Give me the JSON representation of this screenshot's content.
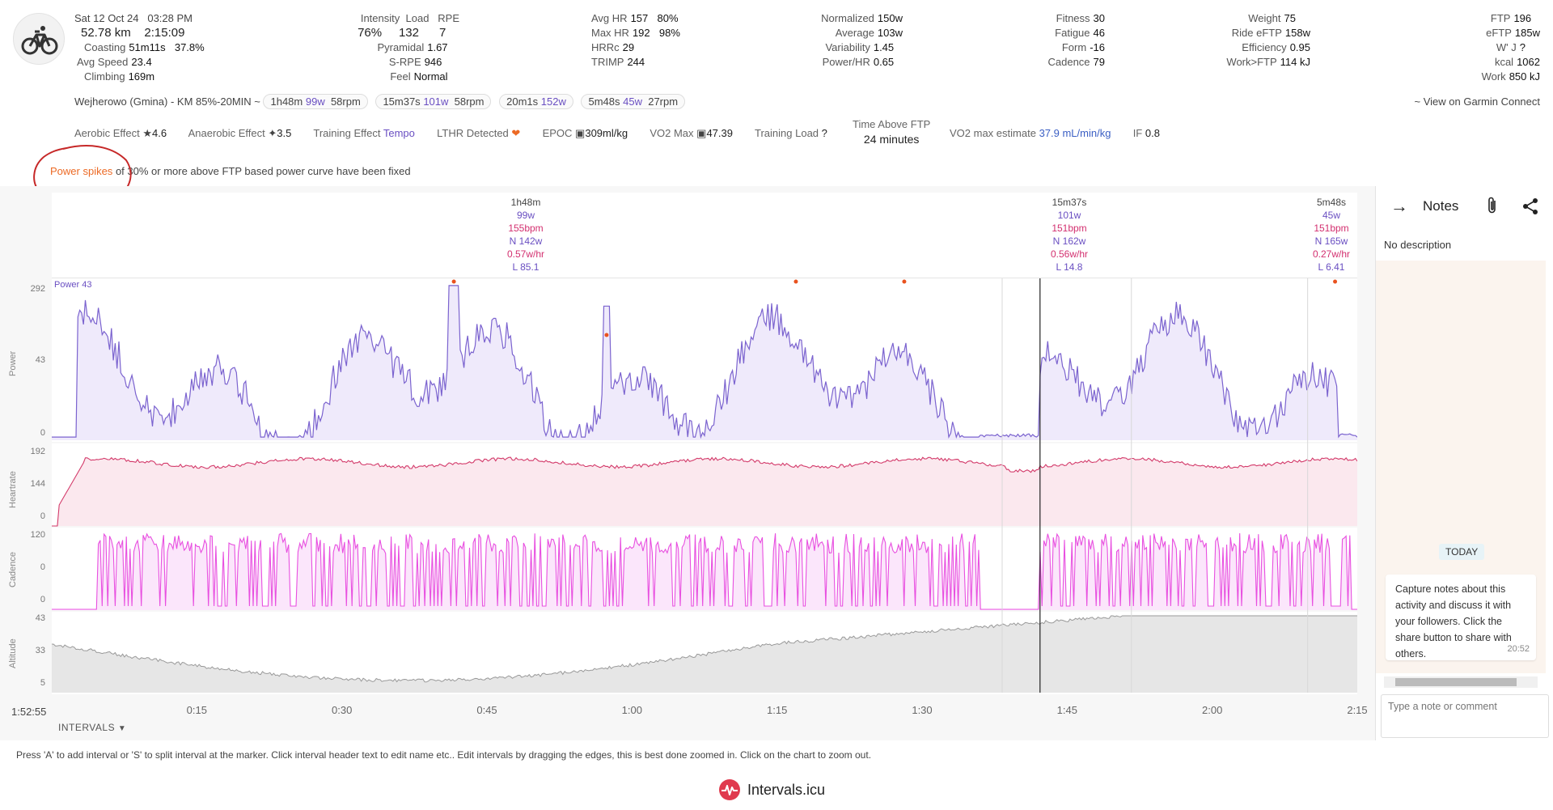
{
  "activity": {
    "date": "Sat 12 Oct 24",
    "time": "03:28 PM",
    "distance": "52.78 km",
    "duration": "2:15:09",
    "coasting_label": "Coasting",
    "coasting": "51m11s",
    "coasting_pct": "37.8%",
    "avg_speed_label": "Avg Speed",
    "avg_speed": "23.4",
    "climbing_label": "Climbing",
    "climbing": "169m"
  },
  "col2": {
    "intensity_label": "Intensity",
    "load_label": "Load",
    "rpe_label": "RPE",
    "intensity": "76%",
    "load": "132",
    "rpe": "7",
    "pyramidal_label": "Pyramidal",
    "pyramidal": "1.67",
    "srpe_label": "S-RPE",
    "srpe": "946",
    "feel_label": "Feel",
    "feel": "Normal"
  },
  "col3": {
    "avg_hr_label": "Avg HR",
    "avg_hr": "157",
    "avg_hr_pct": "80%",
    "max_hr_label": "Max HR",
    "max_hr": "192",
    "max_hr_pct": "98%",
    "hrrc_label": "HRRc",
    "hrrc": "29",
    "trimp_label": "TRIMP",
    "trimp": "244"
  },
  "col4": {
    "normalized_label": "Normalized",
    "normalized": "150w",
    "average_label": "Average",
    "average": "103w",
    "variability_label": "Variability",
    "variability": "1.45",
    "powerhr_label": "Power/HR",
    "powerhr": "0.65"
  },
  "col5": {
    "fitness_label": "Fitness",
    "fitness": "30",
    "fatigue_label": "Fatigue",
    "fatigue": "46",
    "form_label": "Form",
    "form": "-16",
    "cadence_label": "Cadence",
    "cadence": "79"
  },
  "col6": {
    "weight_label": "Weight",
    "weight": "75",
    "ride_eftp_label": "Ride eFTP",
    "ride_eftp": "158w",
    "efficiency_label": "Efficiency",
    "efficiency": "0.95",
    "workftp_label": "Work>FTP",
    "workftp": "114 kJ"
  },
  "col7": {
    "ftp_label": "FTP",
    "ftp": "196",
    "eftp_label": "eFTP",
    "eftp": "185w",
    "wj_label": "W' J",
    "wj": "?",
    "kcal_label": "kcal",
    "kcal": "1062",
    "work_label": "Work",
    "work": "850 kJ"
  },
  "route": {
    "name": "Wejherowo (Gmina) - KM 85%-20MIN ~",
    "chips": [
      {
        "dur": "1h48m",
        "pw": "99w",
        "cad": "58rpm"
      },
      {
        "dur": "15m37s",
        "pw": "101w",
        "cad": "58rpm"
      },
      {
        "dur": "20m1s",
        "pw": "152w",
        "cad": ""
      },
      {
        "dur": "5m48s",
        "pw": "45w",
        "cad": "27rpm"
      }
    ],
    "garmin_link": "~ View on Garmin Connect"
  },
  "effects": {
    "aerobic_label": "Aerobic Effect",
    "aerobic": "4.6",
    "anaerobic_label": "Anaerobic Effect",
    "anaerobic": "3.5",
    "training_effect_label": "Training Effect",
    "training_effect": "Tempo",
    "lthr_label": "LTHR Detected",
    "epoc_label": "EPOC",
    "epoc": "309ml/kg",
    "vo2_label": "VO2 Max",
    "vo2": "47.39",
    "training_load_label": "Training Load",
    "training_load": "?",
    "time_above_ftp_label": "Time Above FTP",
    "time_above_ftp": "24 minutes",
    "vo2_estimate_label": "VO2 max estimate",
    "vo2_estimate": "37.9 mL/min/kg",
    "if_label": "IF",
    "if_value": "0.8"
  },
  "notice": {
    "highlight": "Power spikes",
    "rest": "of 30% or more above FTP based power curve have been fixed"
  },
  "intervals": [
    {
      "dur": "1h48m",
      "pw": "99w",
      "hr": "155bpm",
      "np": "N 142w",
      "whr": "0.57w/hr",
      "l": "L 85.1"
    },
    {
      "dur": "15m37s",
      "pw": "101w",
      "hr": "151bpm",
      "np": "N 162w",
      "whr": "0.56w/hr",
      "l": "L 14.8"
    },
    {
      "dur": "5m48s",
      "pw": "45w",
      "hr": "151bpm",
      "np": "N 165w",
      "whr": "0.27w/hr",
      "l": "L 6.41"
    }
  ],
  "charts": {
    "power_label": "Power",
    "power_legend": "Power 43",
    "power_ticks": [
      "292",
      "43",
      "0"
    ],
    "hr_label": "Heartrate",
    "hr_ticks": [
      "192",
      "144",
      "0"
    ],
    "cad_label": "Cadence",
    "cad_ticks": [
      "120",
      "0",
      "0"
    ],
    "alt_label": "Altitude",
    "alt_ticks": [
      "43",
      "33",
      "5"
    ],
    "cursor_time": "1:52:55",
    "x_ticks": [
      "0:15",
      "0:30",
      "0:45",
      "1:00",
      "1:15",
      "1:30",
      "1:45",
      "2:00",
      "2:15"
    ]
  },
  "chart_data": {
    "type": "line",
    "x_unit": "time",
    "x_range": [
      "0:00",
      "2:15"
    ],
    "series": [
      {
        "name": "Power",
        "ylim": [
          0,
          292
        ]
      },
      {
        "name": "Heartrate",
        "ylim": [
          0,
          192
        ]
      },
      {
        "name": "Cadence",
        "ylim": [
          0,
          120
        ]
      },
      {
        "name": "Altitude",
        "ylim": [
          5,
          43
        ]
      }
    ]
  },
  "intervals_button": "INTERVALS",
  "help_text": "Press 'A' to add interval or 'S' to split interval at the marker. Click interval header text to edit name etc.. Edit intervals by dragging the edges, this is best done zoomed in. Click on the chart to zoom out.",
  "brand": "Intervals.icu",
  "notes": {
    "title": "Notes",
    "description": "No description",
    "today": "TODAY",
    "message": "Capture notes about this activity and discuss it with your followers. Click the share button to share with others.",
    "message_time": "20:52",
    "placeholder": "Type a note or comment"
  },
  "colors": {
    "power": "#7b63cf",
    "heartrate": "#d33a6a",
    "cadence": "#e84fe0",
    "altitude": "#999999",
    "accent": "#6a4fc2"
  }
}
